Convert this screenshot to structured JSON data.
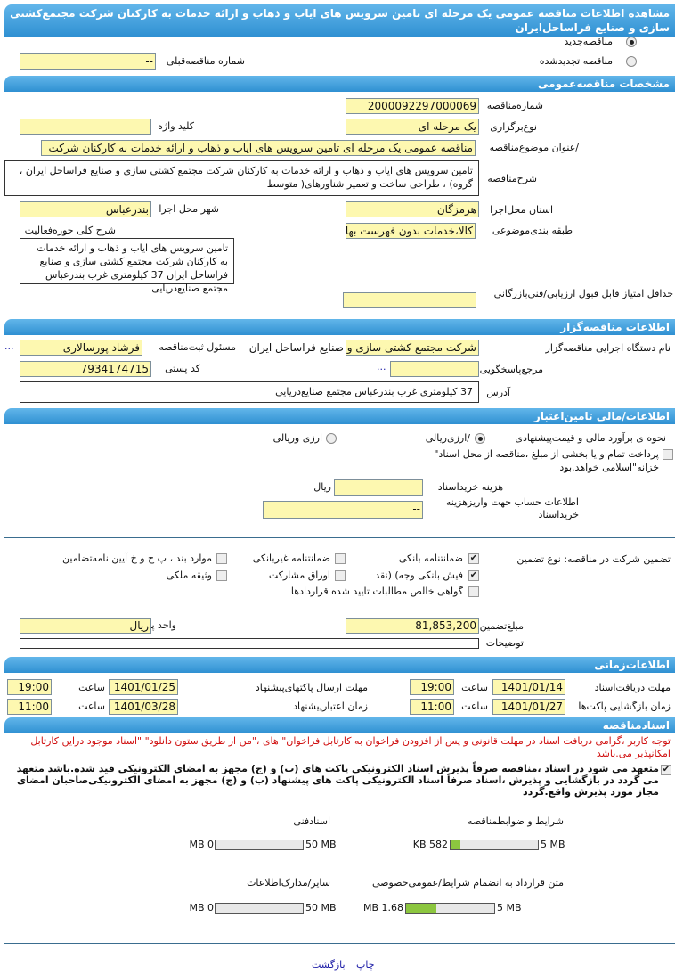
{
  "header": {
    "title": "مشاهده اطلاعات مناقصه عمومی یک مرحله ای تامین سرویس های ایاب و ذهاب و ارائه خدمات به کارکنان شرکت مجتمع‌کشتی سازی و صنایع فراساحل‌ایران"
  },
  "tender_type": {
    "new_label": "مناقصه‌جدید",
    "renewed_label": "مناقصه تجدیدشده",
    "selected": "new",
    "prev_label": "شماره مناقصه‌قبلی",
    "prev_value": "--"
  },
  "general": {
    "section": "مشخصات مناقصه‌عمومی",
    "number_label": "شماره‌مناقصه",
    "number": "2000092297000069",
    "type_label": "نوع‌برگزاری",
    "type": "یک مرحله ای",
    "keyword_label": "کلید واژه",
    "keyword": "",
    "subject_label": "/عنوان موضوع‌مناقصه",
    "subject": "مناقصه عمومی یک مرحله ای تامین سرویس های ایاب و ذهاب و ارائه خدمات به کارکنان شرکت",
    "desc_label": "شرح‌مناقصه",
    "desc": "تامین سرویس های ایاب و ذهاب و ارائه خدمات به کارکنان   شرکت مجتمع کشتی سازی و  صنایع فراساحل ایران ، گروه) ، طراحی ساخت و تعمیر شناورهای( متوسط",
    "province_label": "استان محل‌اجرا",
    "province": "هرمزگان",
    "city_label": "شهر محل اجرا",
    "city": "بندرعباس",
    "category_label": "طبقه بندی‌موضوعی",
    "category": "کالا،خدمات بدون فهرست بها",
    "activity_label": "شرح کلی حوزه‌فعالیت",
    "activity": "تامین سرویس های ایاب و ذهاب و ارائه خدمات به کارکنان   شرکت مجتمع کشتی سازی و  صنایع فراساحل ایران 37 کیلومتری غرب بندرعباس مجتمع صنایع‌دریایی",
    "min_score_label": "حداقل امتیاز قابل قبول ارزیابی/فنی‌بازرگانی",
    "min_score": ""
  },
  "organizer": {
    "section": "اطلاعات مناقصه‌گزار",
    "org_label": "نام دستگاه اجرایی مناقصه‌گزار",
    "org": "شرکت مجتمع کشتی سازی و صنایع فراساحل ایران",
    "responsible_label": "مسئول ثبت‌مناقصه",
    "responsible": "فرشاد پورسالاری",
    "more": "...",
    "ref_label": "مرجع‌پاسخگویی",
    "ref": "",
    "postal_label": "کد پستی",
    "postal": "7934174715",
    "address_label": "آدرس",
    "address": "37 کیلومتری غرب بندرعباس مجتمع صنایع‌دریایی"
  },
  "finance": {
    "section": "اطلاعات/مالی تامین‌اعتبار",
    "estimate_label": "نحوه ی برآورد مالی و قیمت‌پیشنهادی",
    "opt1": "/ارزی‌ریالی",
    "opt2": "ارزی وریالی",
    "treasury": "پرداخت تمام و یا بخشی از مبلغ ،مناقصه از محل اسناد\" خزانه\"اسلامی خواهد.بود",
    "doc_fee_label": "هزینه خریداسناد",
    "doc_fee": "",
    "doc_fee_unit": "ریال",
    "account_label": "اطلاعات حساب جهت واریزهزینه خریداسناد",
    "account": "--"
  },
  "guarantee": {
    "label": "تضمین شرکت در مناقصه:   نوع   تضمین",
    "options": [
      {
        "label": "ضمانتنامه  بانکی",
        "checked": true
      },
      {
        "label": "ضمانتنامه  غیربانکی",
        "checked": false
      },
      {
        "label": "موارد  بند ، پ ح و خ آیین نامه‌تضامین",
        "checked": false
      },
      {
        "label": "فیش  بانکی وجه) (نقد",
        "checked": true
      },
      {
        "label": "اوراق  مشارکت",
        "checked": false
      },
      {
        "label": "وثیقه ملکی",
        "checked": false
      },
      {
        "label": "گواهی  خالص مطالبات تایید شده قراردادها",
        "checked": false
      }
    ],
    "amount_label": "مبلغ‌تضمین",
    "amount": "81,853,200",
    "currency_label": "واحد پول",
    "currency": "ریال",
    "notes_label": "توضیحات",
    "notes": ""
  },
  "timing": {
    "section": "اطلاعات‌زمانی",
    "hour_label": "ساعت",
    "receive_label": "مهلت دریافت‌اسناد",
    "receive_date": "1401/01/14",
    "receive_time": "19:00",
    "submit_label": "مهلت      ارسال پاکتهای‌پیشنهاد",
    "submit_date": "1401/01/25",
    "submit_time": "19:00",
    "open_label": "زمان بازگشایی پاکت‌ها",
    "open_date": "1401/01/27",
    "open_time": "11:00",
    "validity_label": "زمان      اعتبارپیشنهاد",
    "validity_date": "1401/03/28",
    "validity_time": "11:00"
  },
  "documents": {
    "section": "اسنادمناقصه",
    "notice": "توجه کاربر ،گرامی دریافت اسناد در مهلت قانونی و پس از افزودن فراخوان به کارتابل فراخوان\" های ،\"من از طریق ستون دانلود\" \"اسناد موجود دراین کارتابل امکانپذیر می.باشد",
    "commitment": "متعهد می شود در اسناد ،مناقصه صرفاً پذیرش اسناد الکترونیکی پاکت های (ب) و (ج) مجهز به امضای الکترونیکی قید شده.باشد متعهد می گردد در بازگشایی و پذیرش ،اسناد صرفاً اسناد الکترونیکی پاکت های پیشنهاد (ب) و (ج) مجهز به امضای الکترونیکی‌صاحبان امضای مجاز مورد پذیرش واقع.گردد",
    "files": [
      {
        "label": "شرایط و ضوابطمناقصه",
        "used": "582 KB",
        "max": "5 MB",
        "fraction": 0.11
      },
      {
        "label": "اسنادفنی",
        "used": "0 MB",
        "max": "50 MB",
        "fraction": 0
      },
      {
        "label": "متن قرارداد به انضمام شرایط/عمومی‌خصوصی",
        "used": "1.68 MB",
        "max": "5 MB",
        "fraction": 0.34
      },
      {
        "label": "سایر/مدارک‌اطلاعات",
        "used": "0 MB",
        "max": "50 MB",
        "fraction": 0
      }
    ]
  },
  "footer": {
    "print": "چاپ",
    "back": "بازگشت"
  },
  "colors": {
    "section_bar": "#3a9ad9",
    "field_bg": "#fdf8b0",
    "progress": "#8cc63f",
    "notice": "#d01010"
  }
}
